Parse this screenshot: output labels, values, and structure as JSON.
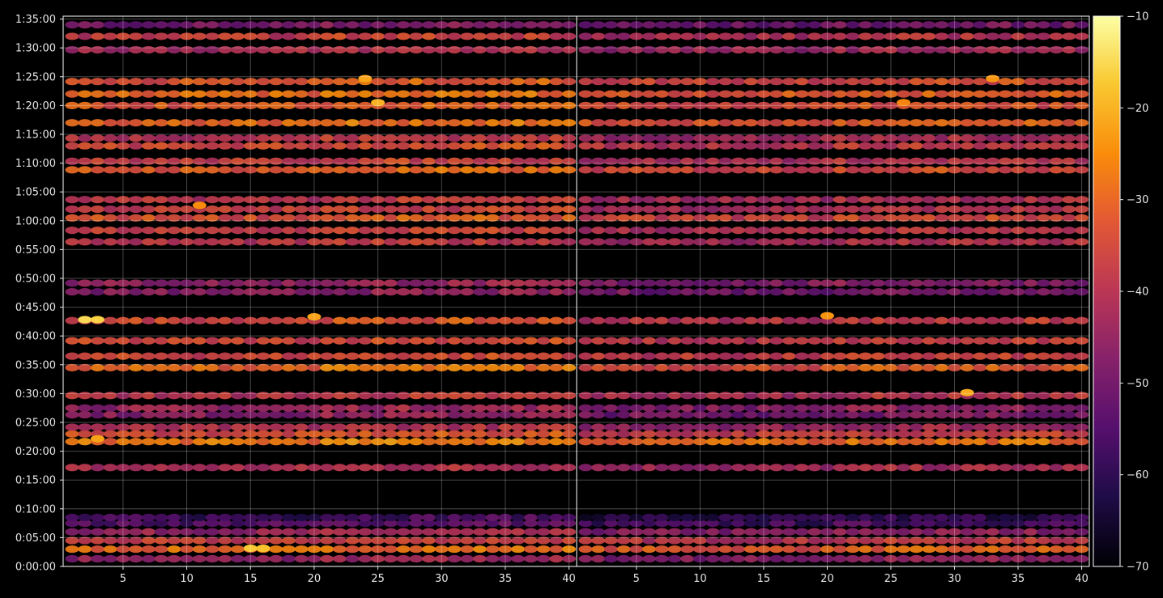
{
  "chart_data": {
    "type": "heatmap",
    "title": "",
    "xlabel": "",
    "ylabel": "",
    "panels": [
      {
        "name": "",
        "xlim": [
          1,
          40
        ],
        "xticks": [
          5,
          10,
          15,
          20,
          25,
          30,
          35,
          40
        ]
      },
      {
        "name": "",
        "xlim": [
          1,
          40
        ],
        "xticks": [
          5,
          10,
          15,
          20,
          25,
          30,
          35,
          40
        ]
      }
    ],
    "y_unit": "seconds",
    "ylim": [
      0,
      5730
    ],
    "yticks": [
      {
        "value": 0,
        "label": "0:00:00"
      },
      {
        "value": 300,
        "label": "0:05:00"
      },
      {
        "value": 600,
        "label": "0:10:00"
      },
      {
        "value": 900,
        "label": "0:15:00"
      },
      {
        "value": 1200,
        "label": "0:20:00"
      },
      {
        "value": 1500,
        "label": "0:25:00"
      },
      {
        "value": 1800,
        "label": "0:30:00"
      },
      {
        "value": 2100,
        "label": "0:35:00"
      },
      {
        "value": 2400,
        "label": "0:40:00"
      },
      {
        "value": 2700,
        "label": "0:45:00"
      },
      {
        "value": 3000,
        "label": "0:50:00"
      },
      {
        "value": 3300,
        "label": "0:55:00"
      },
      {
        "value": 3600,
        "label": "1:00:00"
      },
      {
        "value": 3900,
        "label": "1:05:00"
      },
      {
        "value": 4200,
        "label": "1:10:00"
      },
      {
        "value": 4500,
        "label": "1:15:00"
      },
      {
        "value": 4800,
        "label": "1:20:00"
      },
      {
        "value": 5100,
        "label": "1:25:00"
      },
      {
        "value": 5400,
        "label": "1:30:00"
      },
      {
        "value": 5700,
        "label": "1:35:00"
      }
    ],
    "colorbar": {
      "colormap": "inferno",
      "range": [
        -70,
        -10
      ],
      "ticks": [
        -70,
        -60,
        -50,
        -40,
        -30,
        -20,
        -10
      ],
      "tick_labels": [
        "−70",
        "−60",
        "−50",
        "−40",
        "−30",
        "−20",
        "−10"
      ]
    },
    "grid": true,
    "bands": [
      {
        "t": 80,
        "left": -46,
        "right": -48
      },
      {
        "t": 180,
        "left": -30,
        "right": -33
      },
      {
        "t": 270,
        "left": -38,
        "right": -40
      },
      {
        "t": 360,
        "left": -45,
        "right": -48
      },
      {
        "t": 450,
        "left": -55,
        "right": -58
      },
      {
        "t": 510,
        "left": -58,
        "right": -62
      },
      {
        "t": 1030,
        "left": -42,
        "right": -44
      },
      {
        "t": 1300,
        "left": -28,
        "right": -30
      },
      {
        "t": 1380,
        "left": -35,
        "right": -38
      },
      {
        "t": 1450,
        "left": -42,
        "right": -45
      },
      {
        "t": 1580,
        "left": -47,
        "right": -50
      },
      {
        "t": 1650,
        "left": -45,
        "right": -48
      },
      {
        "t": 1780,
        "left": -40,
        "right": -42
      },
      {
        "t": 2070,
        "left": -30,
        "right": -34
      },
      {
        "t": 2190,
        "left": -36,
        "right": -39
      },
      {
        "t": 2350,
        "left": -36,
        "right": -40
      },
      {
        "t": 2560,
        "left": -35,
        "right": -40
      },
      {
        "t": 2860,
        "left": -48,
        "right": -50
      },
      {
        "t": 2950,
        "left": -46,
        "right": -49
      },
      {
        "t": 3380,
        "left": -40,
        "right": -43
      },
      {
        "t": 3500,
        "left": -38,
        "right": -42
      },
      {
        "t": 3630,
        "left": -34,
        "right": -37
      },
      {
        "t": 3720,
        "left": -38,
        "right": -42
      },
      {
        "t": 3820,
        "left": -40,
        "right": -43
      },
      {
        "t": 4130,
        "left": -32,
        "right": -36
      },
      {
        "t": 4220,
        "left": -38,
        "right": -42
      },
      {
        "t": 4380,
        "left": -36,
        "right": -40
      },
      {
        "t": 4460,
        "left": -40,
        "right": -44
      },
      {
        "t": 4620,
        "left": -30,
        "right": -34
      },
      {
        "t": 4800,
        "left": -33,
        "right": -36
      },
      {
        "t": 4920,
        "left": -30,
        "right": -33
      },
      {
        "t": 5050,
        "left": -33,
        "right": -36
      },
      {
        "t": 5380,
        "left": -42,
        "right": -45
      },
      {
        "t": 5520,
        "left": -38,
        "right": -42
      },
      {
        "t": 5640,
        "left": -50,
        "right": -52
      }
    ],
    "hotspots": [
      {
        "panel": 0,
        "x": 2,
        "t": 2570,
        "value": -15
      },
      {
        "panel": 0,
        "x": 3,
        "t": 2570,
        "value": -16
      },
      {
        "panel": 0,
        "x": 15,
        "t": 190,
        "value": -17
      },
      {
        "panel": 0,
        "x": 16,
        "t": 190,
        "value": -18
      },
      {
        "panel": 0,
        "x": 20,
        "t": 2600,
        "value": -22
      },
      {
        "panel": 0,
        "x": 24,
        "t": 5080,
        "value": -22
      },
      {
        "panel": 0,
        "x": 25,
        "t": 4830,
        "value": -20
      },
      {
        "panel": 0,
        "x": 3,
        "t": 1330,
        "value": -22
      },
      {
        "panel": 0,
        "x": 11,
        "t": 3760,
        "value": -25
      },
      {
        "panel": 1,
        "x": 31,
        "t": 1810,
        "value": -21
      },
      {
        "panel": 1,
        "x": 20,
        "t": 2610,
        "value": -24
      },
      {
        "panel": 1,
        "x": 26,
        "t": 4830,
        "value": -26
      },
      {
        "panel": 1,
        "x": 33,
        "t": 5080,
        "value": -24
      }
    ]
  }
}
